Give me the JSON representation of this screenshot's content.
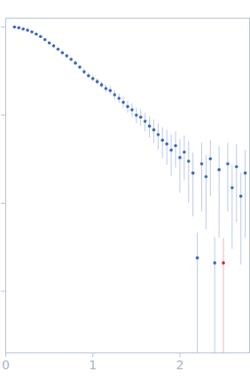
{
  "chart_data": {
    "type": "scatter",
    "log": "y",
    "tick_labels": "x",
    "xlim": [
      0,
      2.8
    ],
    "xticks": [
      0,
      1,
      2
    ],
    "ylim": [
      0.0002,
      1.26
    ],
    "yticks": [
      1,
      0.1,
      0.01,
      0.001
    ],
    "series": [
      {
        "color": "#3b66c4",
        "marker": "circle",
        "x": [
          0.1,
          0.15,
          0.2,
          0.25,
          0.3,
          0.35,
          0.4,
          0.45,
          0.5,
          0.55,
          0.6,
          0.65,
          0.7,
          0.75,
          0.8,
          0.85,
          0.9,
          0.95,
          1.0,
          1.05,
          1.1,
          1.15,
          1.2,
          1.25,
          1.3,
          1.35,
          1.4,
          1.45,
          1.5,
          1.55,
          1.6,
          1.65,
          1.7,
          1.75,
          1.8,
          1.85,
          1.9,
          1.95,
          2.0,
          2.05,
          2.1,
          2.15,
          2.2,
          2.25,
          2.3,
          2.35,
          2.4,
          2.45,
          2.55,
          2.6,
          2.65,
          2.7,
          2.75
        ],
        "values": [
          1.0,
          0.98,
          0.95,
          0.92,
          0.88,
          0.83,
          0.78,
          0.72,
          0.66,
          0.61,
          0.56,
          0.51,
          0.47,
          0.43,
          0.39,
          0.35,
          0.31,
          0.28,
          0.26,
          0.24,
          0.22,
          0.2,
          0.19,
          0.17,
          0.155,
          0.14,
          0.125,
          0.115,
          0.1,
          0.095,
          0.085,
          0.075,
          0.068,
          0.06,
          0.052,
          0.047,
          0.04,
          0.045,
          0.033,
          0.038,
          0.03,
          0.022,
          0.0024,
          0.028,
          0.02,
          0.032,
          0.0021,
          0.024,
          0.028,
          0.015,
          0.026,
          0.012,
          0.022
        ],
        "errors": [
          0.01,
          0.01,
          0.01,
          0.01,
          0.01,
          0.01,
          0.01,
          0.01,
          0.01,
          0.01,
          0.01,
          0.01,
          0.015,
          0.015,
          0.015,
          0.015,
          0.02,
          0.02,
          0.02,
          0.02,
          0.02,
          0.02,
          0.02,
          0.02,
          0.02,
          0.02,
          0.02,
          0.02,
          0.02,
          0.02,
          0.02,
          0.02,
          0.02,
          0.02,
          0.02,
          0.02,
          0.02,
          0.02,
          0.02,
          0.02,
          0.02,
          0.015,
          0.0022,
          0.02,
          0.015,
          0.02,
          0.002,
          0.02,
          0.02,
          0.012,
          0.02,
          0.01,
          0.018
        ]
      },
      {
        "color": "#d62728",
        "marker": "circle",
        "x": [
          2.5
        ],
        "values": [
          0.0021
        ],
        "errors": [
          0.0019
        ]
      }
    ]
  }
}
